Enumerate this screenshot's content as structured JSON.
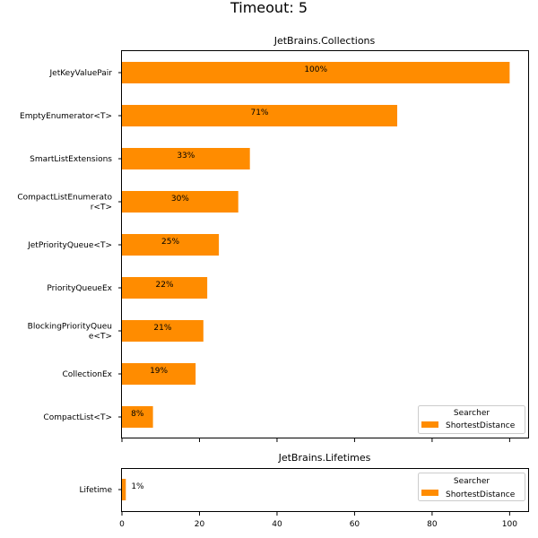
{
  "suptitle": "Timeout: 5",
  "accent_color": "#ff8c00",
  "chart_data": [
    {
      "type": "bar",
      "orientation": "horizontal",
      "title": "JetBrains.Collections",
      "categories": [
        "JetKeyValuePair",
        "EmptyEnumerator<T>",
        "SmartListExtensions",
        "CompactListEnumerato\nr<T>",
        "JetPriorityQueue<T>",
        "PriorityQueueEx",
        "BlockingPriorityQueu\ne<T>",
        "CollectionEx",
        "CompactList<T>"
      ],
      "series": [
        {
          "name": "ShortestDistance",
          "values": [
            100,
            71,
            33,
            30,
            25,
            22,
            21,
            19,
            8
          ],
          "labels": [
            "100%",
            "71%",
            "33%",
            "30%",
            "25%",
            "22%",
            "21%",
            "19%",
            "8%"
          ]
        }
      ],
      "xlim": [
        0,
        105
      ],
      "xticks": [
        0,
        20,
        40,
        60,
        80,
        100
      ],
      "show_tick_labels": false,
      "legend": {
        "title": "Searcher",
        "position": "lower-right",
        "entries": [
          "ShortestDistance"
        ]
      }
    },
    {
      "type": "bar",
      "orientation": "horizontal",
      "title": "JetBrains.Lifetimes",
      "categories": [
        "Lifetime"
      ],
      "series": [
        {
          "name": "ShortestDistance",
          "values": [
            1
          ],
          "labels": [
            "1%"
          ]
        }
      ],
      "xlim": [
        0,
        105
      ],
      "xticks": [
        0,
        20,
        40,
        60,
        80,
        100
      ],
      "xtick_labels": [
        "0",
        "20",
        "40",
        "60",
        "80",
        "100"
      ],
      "show_tick_labels": true,
      "legend": {
        "title": "Searcher",
        "position": "upper-right",
        "entries": [
          "ShortestDistance"
        ]
      }
    }
  ]
}
